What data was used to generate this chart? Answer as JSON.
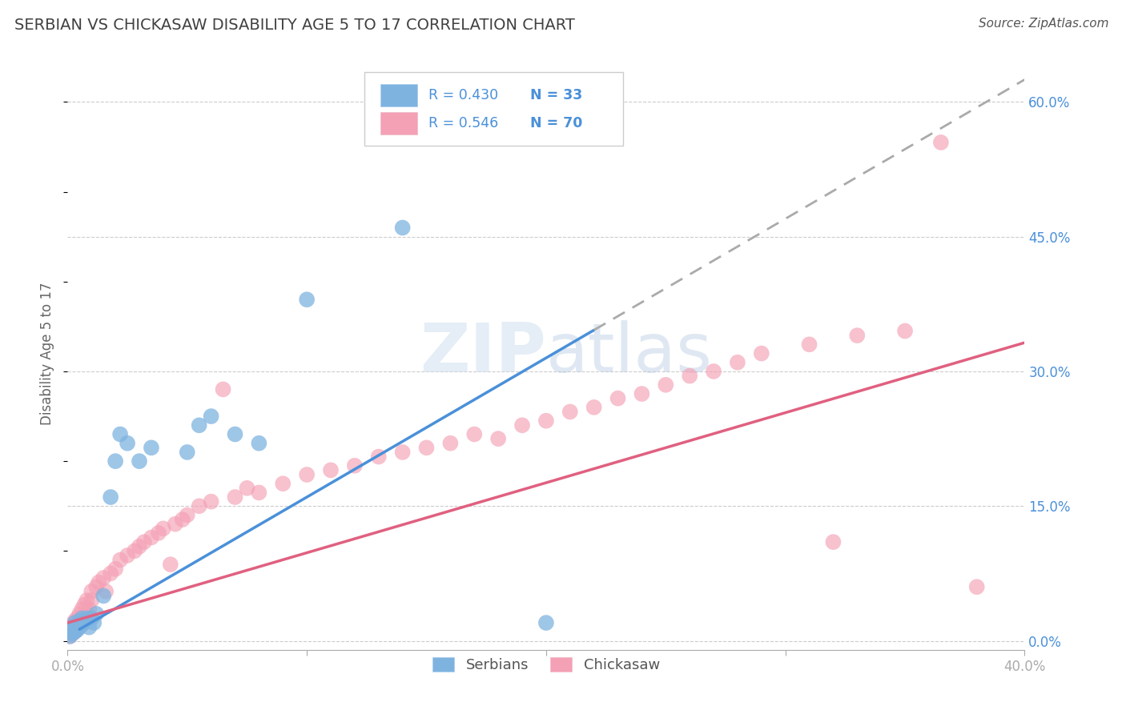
{
  "title": "SERBIAN VS CHICKASAW DISABILITY AGE 5 TO 17 CORRELATION CHART",
  "source": "Source: ZipAtlas.com",
  "ylabel": "Disability Age 5 to 17",
  "xlim": [
    0.0,
    0.4
  ],
  "ylim": [
    -0.01,
    0.65
  ],
  "yticks_right": [
    0.0,
    0.15,
    0.3,
    0.45,
    0.6
  ],
  "ytick_labels_right": [
    "0.0%",
    "15.0%",
    "30.0%",
    "45.0%",
    "60.0%"
  ],
  "serbian_R": 0.43,
  "serbian_N": 33,
  "chickasaw_R": 0.546,
  "chickasaw_N": 70,
  "serbian_color": "#7EB3E0",
  "chickasaw_color": "#F4A0B5",
  "trend_serbian_color": "#4A90D9",
  "trend_chickasaw_color": "#E06080",
  "trend_dashed_color": "#AAAAAA",
  "background_color": "#FFFFFF",
  "grid_color": "#CCCCCC",
  "title_color": "#404040",
  "axis_label_color": "#4A90D9",
  "watermark_color": "#C8D8E8",
  "serbian_x": [
    0.001,
    0.001,
    0.002,
    0.002,
    0.003,
    0.003,
    0.004,
    0.004,
    0.005,
    0.005,
    0.006,
    0.006,
    0.007,
    0.008,
    0.009,
    0.01,
    0.011,
    0.012,
    0.015,
    0.018,
    0.02,
    0.022,
    0.025,
    0.03,
    0.035,
    0.05,
    0.055,
    0.06,
    0.07,
    0.08,
    0.1,
    0.14,
    0.2
  ],
  "serbian_y": [
    0.005,
    0.01,
    0.008,
    0.015,
    0.01,
    0.02,
    0.012,
    0.018,
    0.015,
    0.022,
    0.018,
    0.025,
    0.02,
    0.025,
    0.015,
    0.025,
    0.02,
    0.03,
    0.05,
    0.16,
    0.2,
    0.23,
    0.22,
    0.2,
    0.215,
    0.21,
    0.24,
    0.25,
    0.23,
    0.22,
    0.38,
    0.46,
    0.02
  ],
  "chickasaw_x": [
    0.001,
    0.001,
    0.002,
    0.002,
    0.003,
    0.003,
    0.004,
    0.004,
    0.005,
    0.005,
    0.006,
    0.006,
    0.007,
    0.007,
    0.008,
    0.008,
    0.009,
    0.01,
    0.01,
    0.012,
    0.013,
    0.015,
    0.016,
    0.018,
    0.02,
    0.022,
    0.025,
    0.028,
    0.03,
    0.032,
    0.035,
    0.038,
    0.04,
    0.043,
    0.045,
    0.048,
    0.05,
    0.055,
    0.06,
    0.065,
    0.07,
    0.075,
    0.08,
    0.09,
    0.1,
    0.11,
    0.12,
    0.13,
    0.14,
    0.15,
    0.16,
    0.17,
    0.18,
    0.19,
    0.2,
    0.21,
    0.22,
    0.23,
    0.24,
    0.25,
    0.26,
    0.27,
    0.28,
    0.29,
    0.31,
    0.32,
    0.33,
    0.35,
    0.38,
    0.365
  ],
  "chickasaw_y": [
    0.005,
    0.012,
    0.008,
    0.018,
    0.01,
    0.022,
    0.015,
    0.025,
    0.02,
    0.03,
    0.022,
    0.035,
    0.025,
    0.04,
    0.03,
    0.045,
    0.035,
    0.045,
    0.055,
    0.06,
    0.065,
    0.07,
    0.055,
    0.075,
    0.08,
    0.09,
    0.095,
    0.1,
    0.105,
    0.11,
    0.115,
    0.12,
    0.125,
    0.085,
    0.13,
    0.135,
    0.14,
    0.15,
    0.155,
    0.28,
    0.16,
    0.17,
    0.165,
    0.175,
    0.185,
    0.19,
    0.195,
    0.205,
    0.21,
    0.215,
    0.22,
    0.23,
    0.225,
    0.24,
    0.245,
    0.255,
    0.26,
    0.27,
    0.275,
    0.285,
    0.295,
    0.3,
    0.31,
    0.32,
    0.33,
    0.11,
    0.34,
    0.345,
    0.06,
    0.555
  ],
  "trend_serbian_x_start": 0.005,
  "trend_serbian_x_end": 0.22,
  "trend_serbian_slope": 1.55,
  "trend_serbian_intercept": 0.005,
  "trend_chickasaw_slope": 0.78,
  "trend_chickasaw_intercept": 0.02,
  "trend_dashed_x_start": 0.22,
  "trend_dashed_x_end": 0.4
}
